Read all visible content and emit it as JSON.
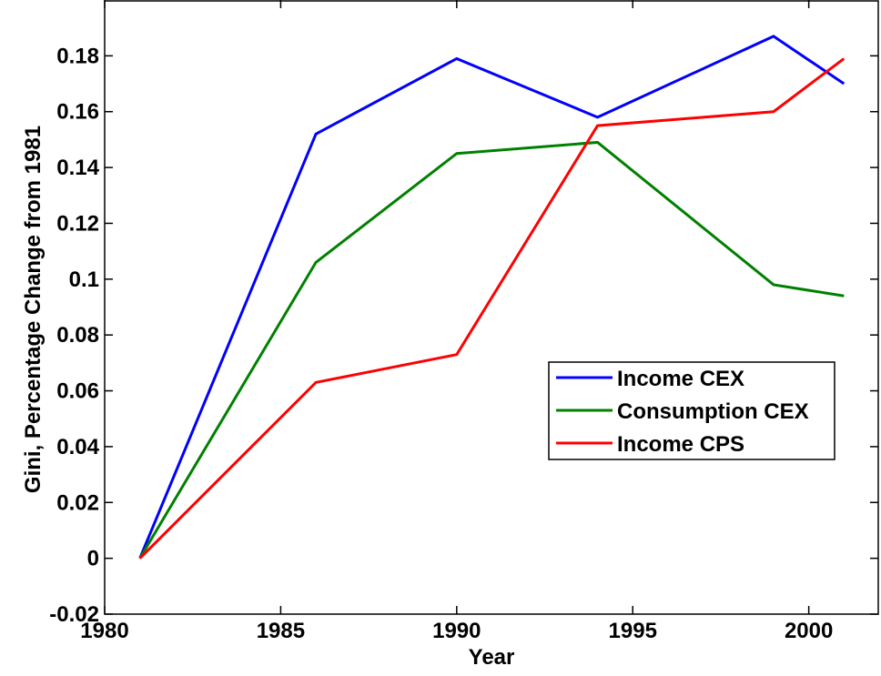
{
  "chart_data": {
    "type": "line",
    "x_label": "Year",
    "y_label": "Gini, Percentage Change from 1981",
    "x": [
      1981,
      1986,
      1990,
      1994,
      1999,
      2001
    ],
    "series": [
      {
        "name": "Income CEX",
        "color": "#0000ff",
        "values": [
          0,
          0.152,
          0.179,
          0.158,
          0.187,
          0.17
        ]
      },
      {
        "name": "Consumption CEX",
        "color": "#008000",
        "values": [
          0,
          0.106,
          0.145,
          0.149,
          0.098,
          0.094
        ]
      },
      {
        "name": "Income CPS",
        "color": "#ff0000",
        "values": [
          0,
          0.063,
          0.073,
          0.155,
          0.16,
          0.179
        ]
      }
    ],
    "xlim": [
      1980,
      2002
    ],
    "xticks": [
      1980,
      1985,
      1990,
      1995,
      2000
    ],
    "ylim": [
      -0.02,
      0.2
    ],
    "yticks": [
      -0.02,
      0,
      0.02,
      0.04,
      0.06,
      0.08,
      0.1,
      0.12,
      0.14,
      0.16,
      0.18
    ],
    "grid": false,
    "legend": "lower right"
  }
}
